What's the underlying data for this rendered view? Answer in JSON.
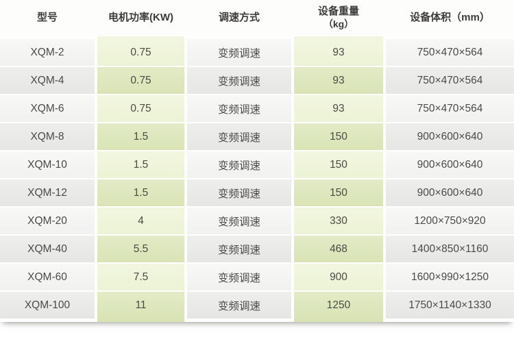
{
  "table": {
    "headers": [
      {
        "label": "型号",
        "sub": ""
      },
      {
        "label": "电机功率(KW)",
        "sub": ""
      },
      {
        "label": "调速方式",
        "sub": ""
      },
      {
        "label": "设备重量",
        "sub": "（kg）"
      },
      {
        "label": "设备体积（mm）",
        "sub": ""
      }
    ],
    "rows": [
      {
        "model": "XQM-2",
        "power": "0.75",
        "speed": "变频调速",
        "weight": "93",
        "volume": "750×470×564"
      },
      {
        "model": "XQM-4",
        "power": "0.75",
        "speed": "变频调速",
        "weight": "93",
        "volume": "750×470×564"
      },
      {
        "model": "XQM-6",
        "power": "0.75",
        "speed": "变频调速",
        "weight": "93",
        "volume": "750×470×564"
      },
      {
        "model": "XQM-8",
        "power": "1.5",
        "speed": "变频调速",
        "weight": "150",
        "volume": "900×600×640"
      },
      {
        "model": "XQM-10",
        "power": "1.5",
        "speed": "变频调速",
        "weight": "150",
        "volume": "900×600×640"
      },
      {
        "model": "XQM-12",
        "power": "1.5",
        "speed": "变频调速",
        "weight": "150",
        "volume": "900×600×640"
      },
      {
        "model": "XQM-20",
        "power": "4",
        "speed": "变频调速",
        "weight": "330",
        "volume": "1200×750×920"
      },
      {
        "model": "XQM-40",
        "power": "5.5",
        "speed": "变频调速",
        "weight": "468",
        "volume": "1400×850×1160"
      },
      {
        "model": "XQM-60",
        "power": "7.5",
        "speed": "变频调速",
        "weight": "900",
        "volume": "1600×990×1250"
      },
      {
        "model": "XQM-100",
        "power": "11",
        "speed": "变频调速",
        "weight": "1250",
        "volume": "1750×1140×1330"
      }
    ]
  },
  "colors": {
    "green_light": "#eff4da",
    "green_dark": "#dbe5b8",
    "gray_light": "#f3f3f2",
    "gray_dark": "#e9e9e7",
    "header_text": "#3d3c38",
    "cell_text": "#4b4a45"
  }
}
